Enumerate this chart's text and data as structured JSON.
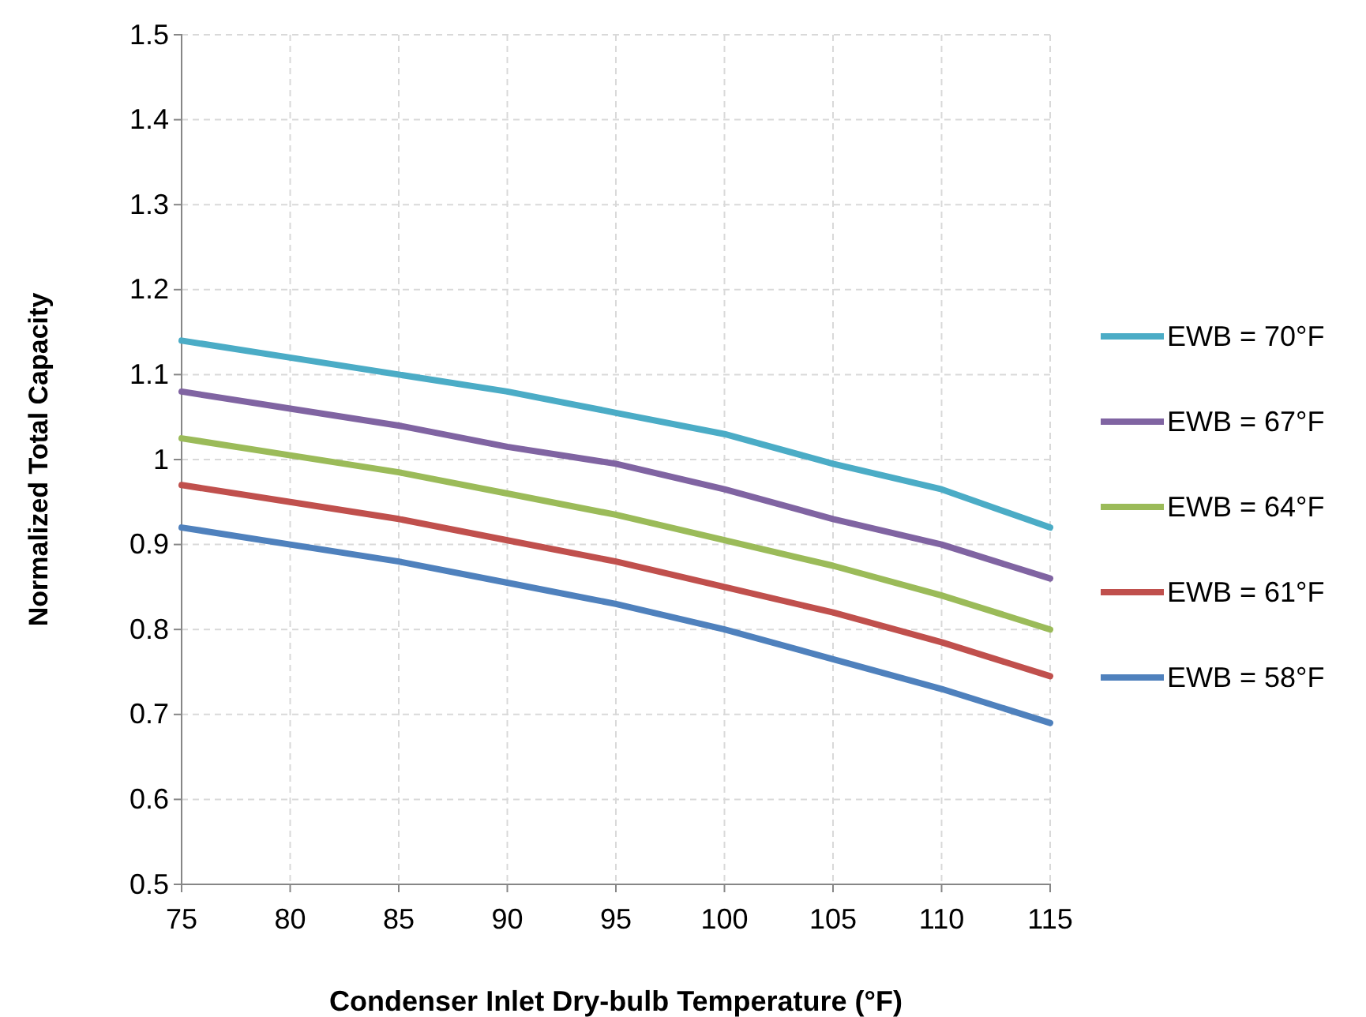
{
  "chart_data": {
    "type": "line",
    "xlabel": "Condenser Inlet Dry-bulb Temperature (°F)",
    "ylabel": "Normalized Total Capacity",
    "x": [
      75,
      80,
      85,
      90,
      95,
      100,
      105,
      110,
      115
    ],
    "xlim": [
      75,
      115
    ],
    "xticks": [
      75,
      80,
      85,
      90,
      95,
      100,
      105,
      110,
      115
    ],
    "ylim": [
      0.5,
      1.5
    ],
    "yticks": [
      0.5,
      0.6,
      0.7,
      0.8,
      0.9,
      {
        "value": 1,
        "label": "1"
      },
      1.1,
      1.2,
      1.3,
      1.4,
      1.5
    ],
    "grid": true,
    "legend": "right",
    "marker": "none",
    "line_style": "solid",
    "series": [
      {
        "name": "EWB = 70°F",
        "color": "#4bacc6",
        "values": [
          1.14,
          1.12,
          1.1,
          1.08,
          1.055,
          1.03,
          0.995,
          0.965,
          0.92
        ]
      },
      {
        "name": "EWB = 67°F",
        "color": "#8064a2",
        "values": [
          1.08,
          1.06,
          1.04,
          1.015,
          0.995,
          0.965,
          0.93,
          0.9,
          0.86
        ]
      },
      {
        "name": "EWB = 64°F",
        "color": "#9bbb59",
        "values": [
          1.025,
          1.005,
          0.985,
          0.96,
          0.935,
          0.905,
          0.875,
          0.84,
          0.8
        ]
      },
      {
        "name": "EWB = 61°F",
        "color": "#c0504d",
        "values": [
          0.97,
          0.95,
          0.93,
          0.905,
          0.88,
          0.85,
          0.82,
          0.785,
          0.745
        ]
      },
      {
        "name": "EWB = 58°F",
        "color": "#4f81bd",
        "values": [
          0.92,
          0.9,
          0.88,
          0.855,
          0.83,
          0.8,
          0.765,
          0.73,
          0.69
        ]
      }
    ]
  }
}
